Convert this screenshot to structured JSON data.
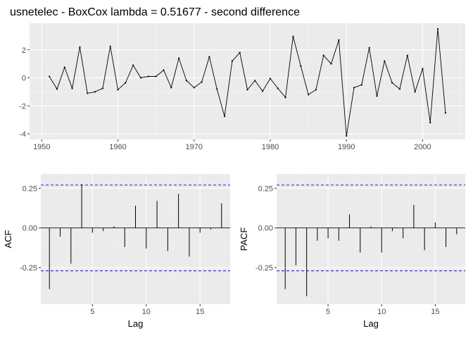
{
  "chart_data": [
    {
      "type": "line",
      "title": "usnetelec - BoxCox lambda =  0.51677  - second difference",
      "xlabel": "",
      "ylabel": "",
      "xlim": [
        1948.4,
        2005.6
      ],
      "ylim": [
        -4.4,
        3.9
      ],
      "x_ticks": [
        1950,
        1960,
        1970,
        1980,
        1990,
        2000
      ],
      "y_ticks": [
        2,
        0,
        -2,
        -4
      ],
      "grid": true,
      "series": [
        {
          "x": [
            1951,
            1952,
            1953,
            1954,
            1955,
            1956,
            1957,
            1958,
            1959,
            1960,
            1961,
            1962,
            1963,
            1964,
            1965,
            1966,
            1967,
            1968,
            1969,
            1970,
            1971,
            1972,
            1973,
            1974,
            1975,
            1976,
            1977,
            1978,
            1979,
            1980,
            1981,
            1982,
            1983,
            1984,
            1985,
            1986,
            1987,
            1988,
            1989,
            1990,
            1991,
            1992,
            1993,
            1994,
            1995,
            1996,
            1997,
            1998,
            1999,
            2000,
            2001,
            2002,
            2003
          ],
          "values": [
            0.1,
            -0.8,
            0.75,
            -0.75,
            2.2,
            -1.1,
            -1.0,
            -0.75,
            2.25,
            -0.85,
            -0.35,
            0.9,
            0.0,
            0.1,
            0.1,
            0.55,
            -0.7,
            1.4,
            -0.2,
            -0.7,
            -0.3,
            1.5,
            -0.8,
            -2.75,
            1.2,
            1.8,
            -0.85,
            -0.2,
            -0.95,
            -0.05,
            -0.75,
            -1.4,
            2.95,
            0.85,
            -1.2,
            -0.85,
            1.6,
            1.0,
            2.7,
            -4.15,
            -0.7,
            -0.5,
            2.15,
            -1.3,
            1.2,
            -0.35,
            -0.8,
            1.6,
            -1.0,
            0.65,
            -3.2,
            3.5,
            -2.5
          ]
        }
      ]
    },
    {
      "type": "bar",
      "title": "",
      "xlabel": "Lag",
      "ylabel": "ACF",
      "xlim": [
        0.2,
        17.8
      ],
      "ylim": [
        -0.48,
        0.34
      ],
      "x_ticks": [
        5,
        10,
        15
      ],
      "y_ticks": [
        0.25,
        0.0,
        -0.25
      ],
      "y_tick_labels": [
        "0.25",
        "0.00",
        "-0.25"
      ],
      "confidence_bound": 0.27,
      "grid": true,
      "categories": [
        1,
        2,
        3,
        4,
        5,
        6,
        7,
        8,
        9,
        10,
        11,
        12,
        13,
        14,
        15,
        16,
        17
      ],
      "values": [
        -0.385,
        -0.055,
        -0.225,
        0.275,
        -0.03,
        -0.02,
        0.01,
        -0.12,
        0.14,
        -0.13,
        0.17,
        -0.145,
        0.215,
        -0.18,
        -0.03,
        -0.01,
        0.155
      ]
    },
    {
      "type": "bar",
      "title": "",
      "xlabel": "Lag",
      "ylabel": "PACF",
      "xlim": [
        0.2,
        17.8
      ],
      "ylim": [
        -0.48,
        0.34
      ],
      "x_ticks": [
        5,
        10,
        15
      ],
      "y_ticks": [
        0.25,
        0.0,
        -0.25
      ],
      "y_tick_labels": [
        "0.25",
        "0.00",
        "-0.25"
      ],
      "confidence_bound": 0.27,
      "grid": true,
      "categories": [
        1,
        2,
        3,
        4,
        5,
        6,
        7,
        8,
        9,
        10,
        11,
        12,
        13,
        14,
        15,
        16,
        17
      ],
      "values": [
        -0.385,
        -0.235,
        -0.43,
        -0.08,
        -0.065,
        -0.08,
        0.085,
        -0.155,
        0.01,
        -0.155,
        -0.02,
        -0.065,
        0.145,
        -0.14,
        0.035,
        -0.12,
        -0.04
      ]
    }
  ],
  "colors": {
    "panel_bg": "#ebebeb",
    "grid_major": "#ffffff",
    "grid_minor": "#f5f5f5",
    "line": "#000000",
    "confidence": "#0000ff"
  }
}
